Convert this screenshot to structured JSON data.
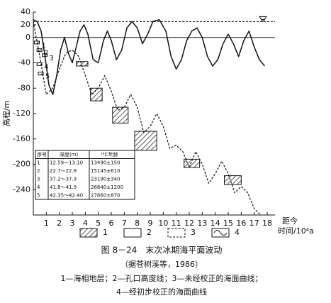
{
  "chart_data": {
    "type": "line",
    "y_label": "高程/m",
    "x_label_top": "距今",
    "x_label": "时间/10⁴a",
    "xlim": [
      0,
      18.6
    ],
    "ylim": [
      -280,
      40
    ],
    "xticks": [
      1,
      2,
      3,
      4,
      5,
      6,
      7,
      8,
      9,
      10,
      11,
      12,
      13,
      14,
      15,
      16,
      17,
      18
    ],
    "yticks": [
      40,
      20,
      0,
      -40,
      -80,
      -120,
      -160,
      -200,
      -240
    ],
    "series": [
      {
        "style": "solid",
        "color": "#111",
        "x": [
          0,
          0.3,
          0.6,
          0.9,
          1.2,
          1.5,
          1.8,
          2.1,
          2.4,
          2.7,
          3.0,
          3.3,
          3.6,
          3.9,
          4.2,
          4.6,
          5.0,
          5.4,
          5.7,
          6.0,
          6.4,
          6.8,
          7.2,
          7.6,
          8.0,
          8.4,
          8.8,
          9.2,
          9.7,
          10.2,
          10.6,
          11.0,
          11.4,
          11.8,
          12.2,
          12.6,
          13.0,
          13.4,
          13.8,
          14.2,
          14.6,
          15.0,
          15.4,
          15.8,
          16.2,
          16.6,
          17.0,
          17.4,
          17.8
        ],
        "values": [
          28,
          25,
          10,
          -30,
          -75,
          -90,
          -60,
          -20,
          0,
          -25,
          -40,
          -15,
          10,
          20,
          5,
          -35,
          -40,
          -5,
          10,
          -5,
          -35,
          -20,
          15,
          25,
          15,
          -10,
          5,
          25,
          28,
          10,
          -30,
          -50,
          -35,
          -5,
          10,
          15,
          0,
          -30,
          -45,
          -35,
          -10,
          5,
          -10,
          -30,
          -5,
          10,
          -15,
          -35,
          -45
        ]
      },
      {
        "style": "dashed",
        "color": "#111",
        "x": [
          0,
          0.5,
          1.0,
          1.5,
          2.0,
          2.5,
          3.0,
          3.5,
          4.0,
          4.5,
          5.0,
          5.5,
          6.0,
          6.5,
          7.0,
          7.5,
          8.0,
          8.5,
          9.0,
          9.5,
          10.0,
          10.5,
          11.0,
          11.5,
          12.0,
          12.5,
          13.0,
          13.5,
          14.0,
          14.5,
          15.0,
          15.5,
          16.0,
          16.5,
          17.0,
          17.5
        ],
        "values": [
          25,
          -30,
          -90,
          -80,
          -50,
          -25,
          -20,
          -30,
          -60,
          -90,
          -80,
          -60,
          -85,
          -115,
          -110,
          -90,
          -110,
          -150,
          -140,
          -120,
          -140,
          -175,
          -170,
          -180,
          -205,
          -180,
          -200,
          -230,
          -215,
          -195,
          -215,
          -245,
          -235,
          -245,
          -270,
          -280
        ]
      }
    ],
    "hlines": [
      {
        "value": 25,
        "style": "dashed"
      },
      {
        "value": 0,
        "style": "solid"
      }
    ],
    "boxes": [
      {
        "x": [
          3.3,
          4.2
        ],
        "y": [
          -38,
          -45
        ]
      },
      {
        "x": [
          4.4,
          5.3
        ],
        "y": [
          -80,
          -100
        ]
      },
      {
        "x": [
          6.1,
          7.3
        ],
        "y": [
          -110,
          -135
        ]
      },
      {
        "x": [
          7.8,
          9.5
        ],
        "y": [
          -148,
          -178
        ]
      },
      {
        "x": [
          11.6,
          12.8
        ],
        "y": [
          -192,
          -205
        ]
      },
      {
        "x": [
          14.7,
          16.0
        ],
        "y": [
          -218,
          -232
        ]
      }
    ],
    "core_points": [
      {
        "label": "1",
        "x": 0.3,
        "y": -8
      },
      {
        "label": "2",
        "x": 0.5,
        "y": -20
      },
      {
        "label": "3",
        "x": 0.9,
        "y": -28
      },
      {
        "label": "4",
        "x": 0.5,
        "y": -42
      },
      {
        "label": "5",
        "x": 0.6,
        "y": -57
      }
    ],
    "table": {
      "header": [
        "序号",
        "深度(m)",
        "¹⁴C年龄"
      ],
      "rows": [
        [
          "1",
          "12.59～13.10",
          "13490±150"
        ],
        [
          "2",
          "22.7～22.8",
          "15145±610"
        ],
        [
          "3",
          "37.2～37.3",
          "23190±340"
        ],
        [
          "4",
          "41.8～41.9",
          "26840±1200"
        ],
        [
          "5",
          "42.35～42.40",
          "27860±870"
        ]
      ]
    },
    "legend": [
      "1",
      "2",
      "3",
      "4"
    ]
  },
  "caption": {
    "title": "图 8－24　末次冰期海平面波动",
    "source": "（据苍树溪等，1986）",
    "line1": "1—海相地层；2—孔口高度线；3—未经校正的海面曲线；",
    "line2": "4—经初步校正的海面曲线"
  }
}
